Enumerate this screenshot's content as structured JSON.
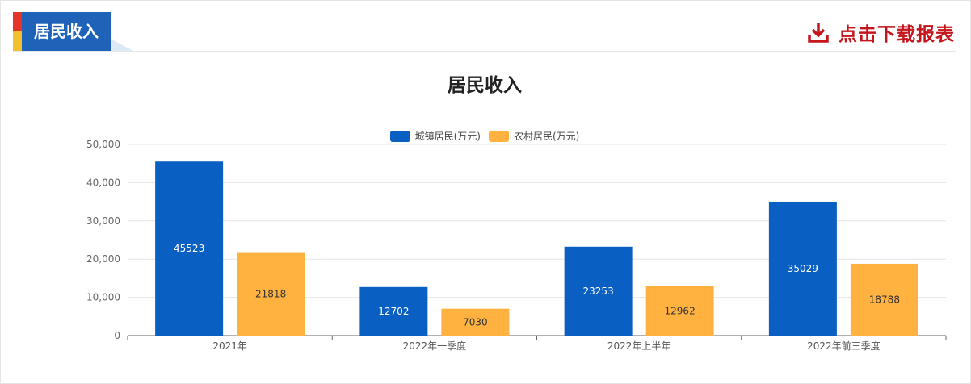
{
  "header": {
    "tab_label": "居民收入",
    "download_label": "点击下载报表",
    "download_icon": "download-icon"
  },
  "colors": {
    "urban": "#0a5fc2",
    "rural": "#ffb23f",
    "tab": "#1f63b8",
    "download": "#c4141c"
  },
  "chart_data": {
    "type": "bar",
    "title": "居民收入",
    "categories": [
      "2021年",
      "2022年一季度",
      "2022年上半年",
      "2022年前三季度"
    ],
    "series": [
      {
        "name": "城镇居民(万元)",
        "values": [
          45523,
          12702,
          23253,
          35029
        ]
      },
      {
        "name": "农村居民(万元)",
        "values": [
          21818,
          7030,
          12962,
          18788
        ]
      }
    ],
    "ylim": [
      0,
      50000
    ],
    "yticks": [
      0,
      10000,
      20000,
      30000,
      40000,
      50000
    ],
    "ytick_labels": [
      "0",
      "10,000",
      "20,000",
      "30,000",
      "40,000",
      "50,000"
    ],
    "xlabel": "",
    "ylabel": "",
    "grid": true,
    "legend_position": "top-center"
  }
}
